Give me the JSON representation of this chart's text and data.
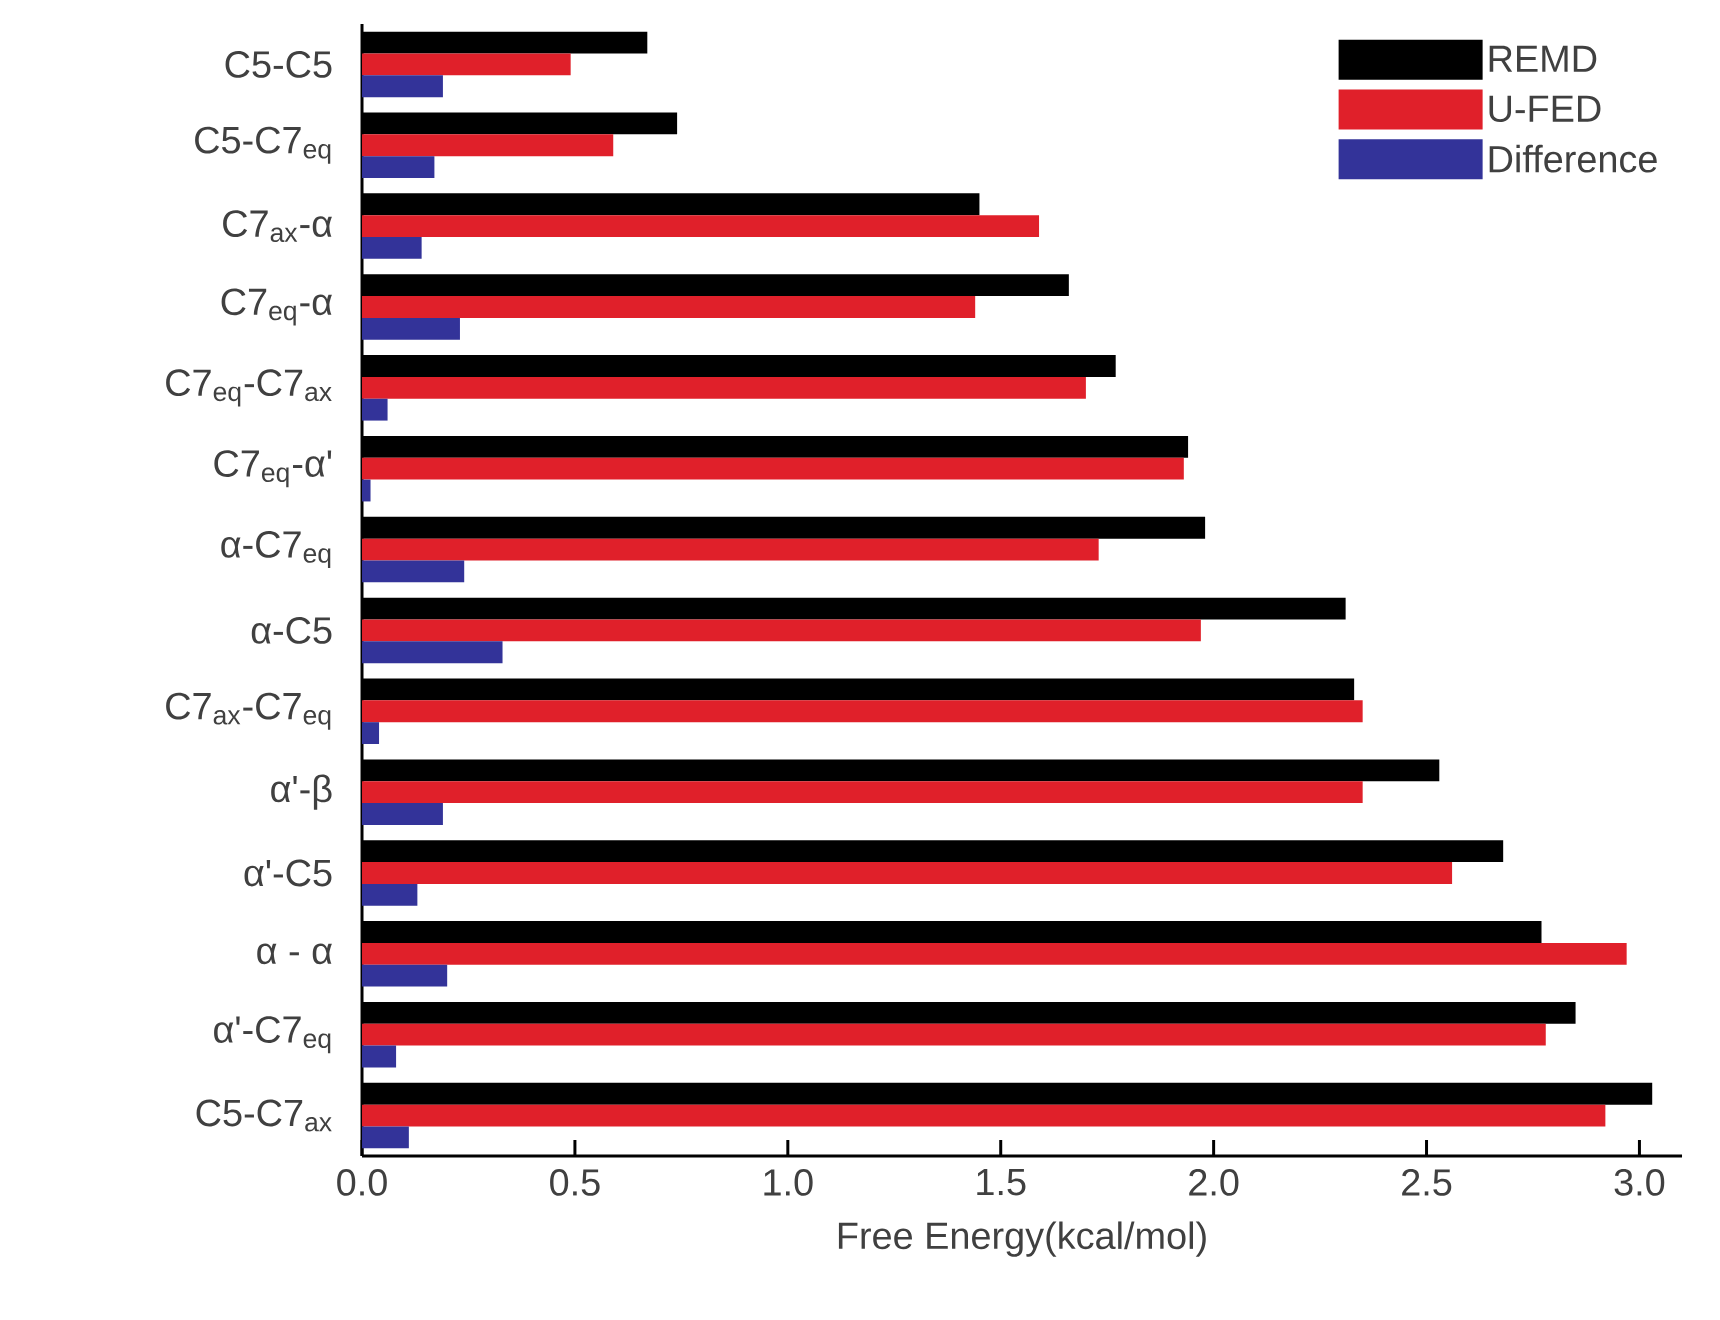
{
  "chart_data": {
    "type": "bar",
    "orientation": "horizontal",
    "xlabel": "Free Energy(kcal/mol)",
    "categories": [
      "C5-C5",
      "C5-C7$_{eq}$",
      "C7$_{ax}$-α",
      "C7$_{eq}$-α",
      "C7$_{eq}$-C7$_{ax}$",
      "C7$_{eq}$-α'",
      "α-C7$_{eq}$",
      "α-C5",
      "C7$_{ax}$-C7$_{eq}$",
      "α'-β",
      "α'-C5",
      "α - α",
      "α'-C7$_{eq}$",
      "C5-C7$_{ax}$"
    ],
    "series": [
      {
        "name": "REMD",
        "color": "#000000",
        "values": [
          0.67,
          0.74,
          1.45,
          1.66,
          1.77,
          1.94,
          1.98,
          2.31,
          2.33,
          2.53,
          2.68,
          2.77,
          2.85,
          3.03
        ]
      },
      {
        "name": "U-FED",
        "color": "#e0202a",
        "values": [
          0.49,
          0.59,
          1.59,
          1.44,
          1.7,
          1.93,
          1.73,
          1.97,
          2.35,
          2.35,
          2.56,
          2.97,
          2.78,
          2.92
        ]
      },
      {
        "name": "Difference",
        "color": "#333399",
        "values": [
          0.19,
          0.17,
          0.14,
          0.23,
          0.06,
          0.02,
          0.24,
          0.33,
          0.04,
          0.19,
          0.13,
          0.2,
          0.08,
          0.11
        ]
      }
    ],
    "xlim": [
      0,
      3.1
    ],
    "xticks": [
      {
        "value": 0,
        "label": "0.0"
      },
      {
        "value": 0.5,
        "label": "0.5"
      },
      {
        "value": 1,
        "label": "1.0"
      },
      {
        "value": 1.5,
        "label": "1.5"
      },
      {
        "value": 2,
        "label": "2.0"
      },
      {
        "value": 2.5,
        "label": "2.5"
      },
      {
        "value": 3,
        "label": "3.0"
      }
    ],
    "grid": false,
    "legend": "top right"
  }
}
